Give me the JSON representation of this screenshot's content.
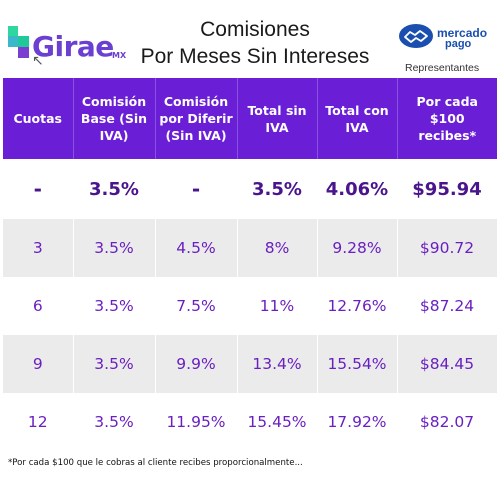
{
  "brand": {
    "logo_text": "Girae",
    "logo_suffix": "MX"
  },
  "title": {
    "line1": "Comisiones",
    "line2": "Por Meses Sin Intereses"
  },
  "partner": {
    "brand_line1": "mercado",
    "brand_line2": "pago",
    "subtitle": "Representantes"
  },
  "colors": {
    "header_bg": "#6a1fd6",
    "text_purple": "#6a1fc0",
    "row_shade": "#ebebeb",
    "mp_blue": "#1a4fb0"
  },
  "table": {
    "headers": [
      "Cuotas",
      "Comisión Base (Sin IVA)",
      "Comisión por Diferir (Sin IVA)",
      "Total sin IVA",
      "Total con IVA",
      "Por cada $100 recibes*"
    ],
    "rows": [
      [
        "-",
        "3.5%",
        "-",
        "3.5%",
        "4.06%",
        "$95.94"
      ],
      [
        "3",
        "3.5%",
        "4.5%",
        "8%",
        "9.28%",
        "$90.72"
      ],
      [
        "6",
        "3.5%",
        "7.5%",
        "11%",
        "12.76%",
        "$87.24"
      ],
      [
        "9",
        "3.5%",
        "9.9%",
        "13.4%",
        "15.54%",
        "$84.45"
      ],
      [
        "12",
        "3.5%",
        "11.95%",
        "15.45%",
        "17.92%",
        "$82.07"
      ]
    ]
  },
  "footnote": "*Por cada $100  que le cobras al cliente recibes proporcionalmente..."
}
